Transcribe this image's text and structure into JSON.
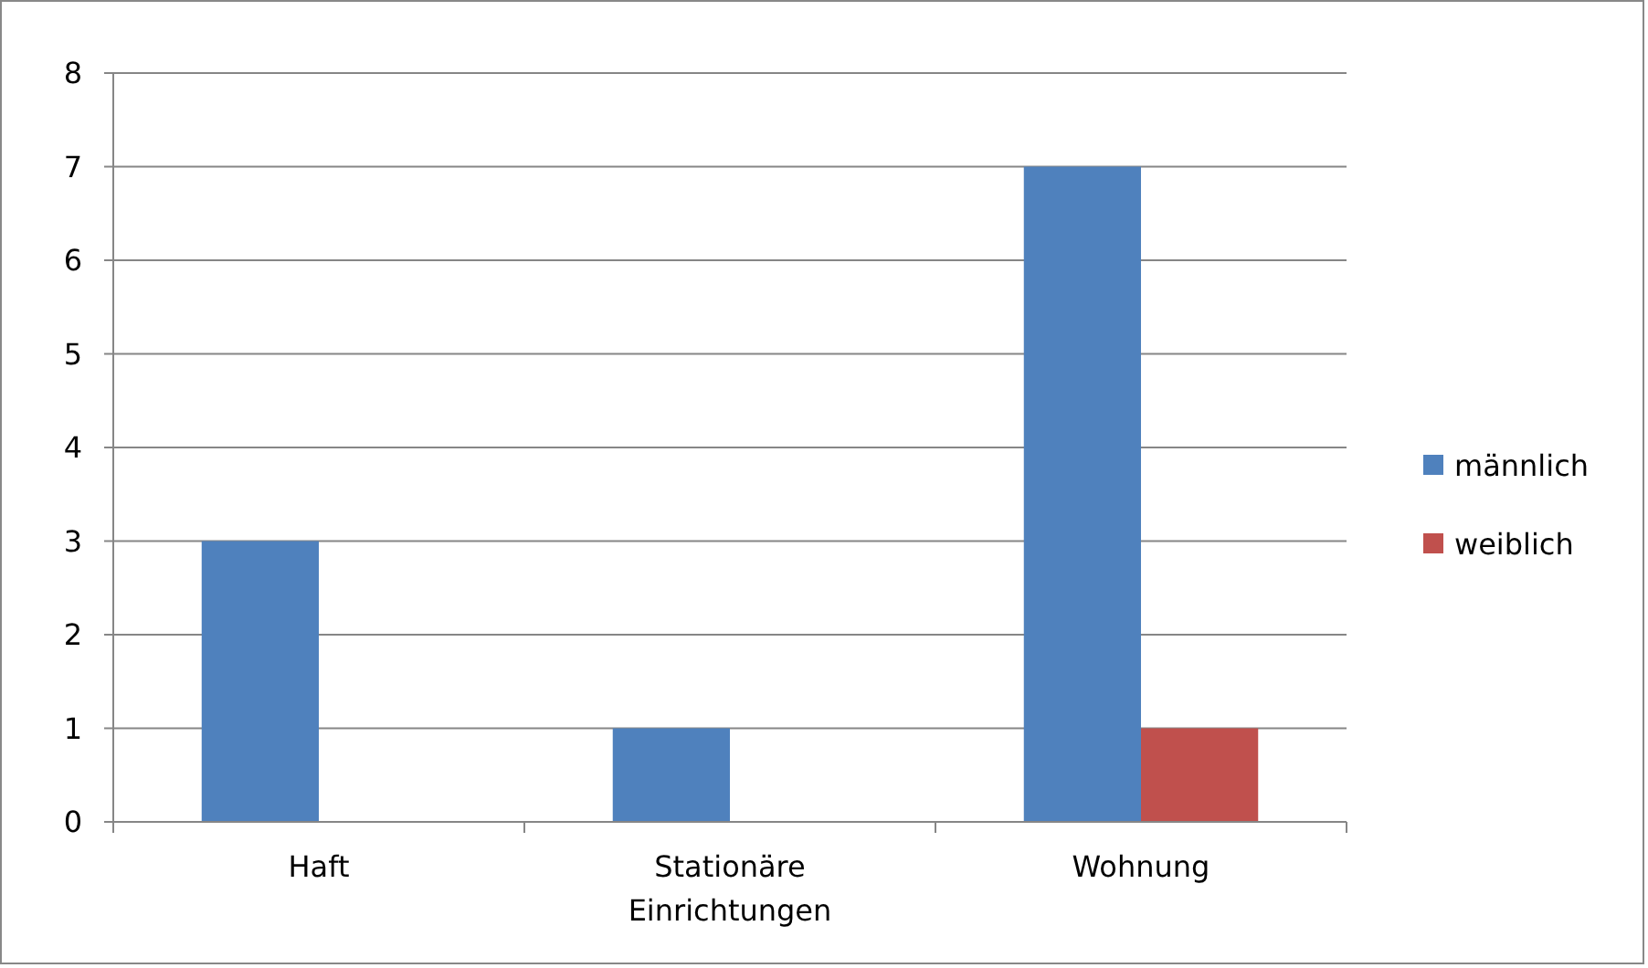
{
  "chart_data": {
    "type": "bar",
    "categories": [
      "Haft",
      "Stationäre Einrichtungen",
      "Wohnung"
    ],
    "series": [
      {
        "name": "männlich",
        "color": "#4f81bd",
        "values": [
          3,
          1,
          7
        ]
      },
      {
        "name": "weiblich",
        "color": "#c0504d",
        "values": [
          0,
          0,
          1
        ]
      }
    ],
    "ylim": [
      0,
      8
    ],
    "yticks": [
      0,
      1,
      2,
      3,
      4,
      5,
      6,
      7,
      8
    ],
    "grid": "y",
    "legend": "right"
  }
}
